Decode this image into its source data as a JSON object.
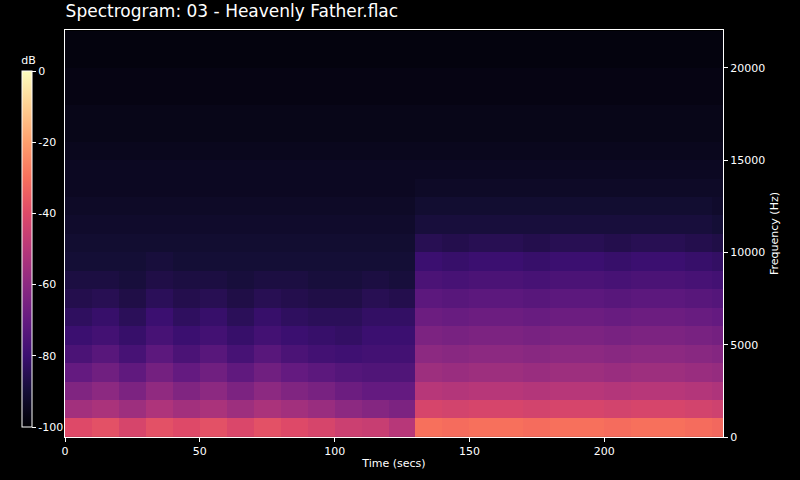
{
  "chart_data": {
    "type": "heatmap",
    "title": "Spectrogram: 03 - Heavenly Father.flac",
    "x_label": "Time (secs)",
    "y_label": "Frequency (Hz)",
    "x": [
      5,
      15,
      25,
      35,
      45,
      55,
      65,
      75,
      85,
      95,
      105,
      115,
      125,
      135,
      145,
      155,
      165,
      175,
      185,
      195,
      205,
      215,
      225,
      235,
      245
    ],
    "y": [
      500,
      1500,
      2500,
      3500,
      4500,
      5500,
      6500,
      7500,
      8500,
      9500,
      10500,
      11500,
      12500,
      13500,
      14500,
      15500,
      16500,
      17500,
      18500,
      19500,
      20500,
      21500
    ],
    "z": [
      [
        -40,
        -38,
        -42,
        -38,
        -40,
        -38,
        -41,
        -38,
        -40,
        -42,
        -45,
        -46,
        -50,
        -30,
        -31,
        -30,
        -30,
        -31,
        -30,
        -30,
        -31,
        -30,
        -30,
        -31,
        -32
      ],
      [
        -55,
        -53,
        -56,
        -52,
        -55,
        -53,
        -56,
        -53,
        -55,
        -57,
        -60,
        -62,
        -64,
        -42,
        -43,
        -42,
        -42,
        -43,
        -42,
        -42,
        -43,
        -42,
        -42,
        -43,
        -44
      ],
      [
        -63,
        -60,
        -64,
        -59,
        -63,
        -60,
        -64,
        -60,
        -63,
        -65,
        -68,
        -70,
        -70,
        -50,
        -51,
        -50,
        -50,
        -51,
        -50,
        -50,
        -51,
        -50,
        -50,
        -51,
        -52
      ],
      [
        -70,
        -67,
        -71,
        -66,
        -70,
        -67,
        -71,
        -67,
        -70,
        -72,
        -74,
        -75,
        -75,
        -56,
        -57,
        -56,
        -56,
        -57,
        -56,
        -56,
        -57,
        -56,
        -56,
        -57,
        -58
      ],
      [
        -76,
        -73,
        -77,
        -72,
        -76,
        -73,
        -77,
        -73,
        -76,
        -78,
        -79,
        -78,
        -78,
        -60,
        -61,
        -60,
        -60,
        -61,
        -60,
        -60,
        -61,
        -60,
        -60,
        -61,
        -62
      ],
      [
        -80,
        -78,
        -81,
        -77,
        -80,
        -78,
        -81,
        -78,
        -80,
        -81,
        -82,
        -80,
        -80,
        -64,
        -65,
        -64,
        -64,
        -65,
        -64,
        -64,
        -65,
        -64,
        -64,
        -65,
        -66
      ],
      [
        -83,
        -81,
        -84,
        -80,
        -83,
        -81,
        -84,
        -81,
        -83,
        -84,
        -84,
        -82,
        -82,
        -68,
        -69,
        -68,
        -68,
        -69,
        -68,
        -68,
        -69,
        -68,
        -68,
        -69,
        -70
      ],
      [
        -86,
        -85,
        -87,
        -84,
        -86,
        -85,
        -87,
        -85,
        -86,
        -87,
        -87,
        -85,
        -86,
        -72,
        -73,
        -72,
        -72,
        -73,
        -72,
        -72,
        -73,
        -72,
        -72,
        -73,
        -74
      ],
      [
        -88,
        -88,
        -89,
        -87,
        -88,
        -88,
        -89,
        -88,
        -88,
        -89,
        -89,
        -88,
        -89,
        -76,
        -77,
        -76,
        -76,
        -77,
        -76,
        -76,
        -77,
        -76,
        -76,
        -77,
        -78
      ],
      [
        -90,
        -90,
        -90,
        -89,
        -90,
        -90,
        -90,
        -90,
        -90,
        -90,
        -90,
        -90,
        -90,
        -80,
        -81,
        -80,
        -80,
        -81,
        -80,
        -80,
        -81,
        -80,
        -80,
        -81,
        -82
      ],
      [
        -91,
        -91,
        -91,
        -91,
        -91,
        -91,
        -91,
        -91,
        -91,
        -91,
        -91,
        -91,
        -91,
        -85,
        -86,
        -85,
        -85,
        -86,
        -85,
        -85,
        -86,
        -85,
        -85,
        -86,
        -87
      ],
      [
        -92,
        -92,
        -92,
        -92,
        -92,
        -92,
        -92,
        -92,
        -92,
        -92,
        -92,
        -92,
        -92,
        -89,
        -89,
        -89,
        -89,
        -89,
        -89,
        -89,
        -89,
        -89,
        -89,
        -89,
        -90
      ],
      [
        -93,
        -93,
        -93,
        -93,
        -93,
        -93,
        -93,
        -93,
        -93,
        -93,
        -93,
        -93,
        -93,
        -91,
        -91,
        -91,
        -91,
        -91,
        -91,
        -91,
        -91,
        -91,
        -91,
        -91,
        -92
      ],
      [
        -94,
        -94,
        -94,
        -94,
        -94,
        -94,
        -94,
        -94,
        -94,
        -94,
        -94,
        -94,
        -94,
        -93,
        -93,
        -93,
        -93,
        -93,
        -93,
        -93,
        -93,
        -93,
        -93,
        -93,
        -93
      ],
      [
        -94,
        -94,
        -94,
        -94,
        -94,
        -94,
        -94,
        -94,
        -94,
        -94,
        -94,
        -94,
        -94,
        -94,
        -94,
        -94,
        -94,
        -94,
        -94,
        -94,
        -94,
        -94,
        -94,
        -94,
        -94
      ],
      [
        -95,
        -95,
        -95,
        -95,
        -95,
        -95,
        -95,
        -95,
        -95,
        -95,
        -95,
        -95,
        -95,
        -95,
        -95,
        -95,
        -95,
        -95,
        -95,
        -95,
        -95,
        -95,
        -95,
        -95,
        -95
      ],
      [
        -96,
        -96,
        -96,
        -96,
        -96,
        -96,
        -96,
        -96,
        -96,
        -96,
        -96,
        -96,
        -96,
        -96,
        -96,
        -96,
        -96,
        -96,
        -96,
        -96,
        -96,
        -96,
        -96,
        -96,
        -96
      ],
      [
        -96,
        -96,
        -96,
        -96,
        -96,
        -96,
        -96,
        -96,
        -96,
        -96,
        -96,
        -96,
        -96,
        -96,
        -96,
        -96,
        -96,
        -96,
        -96,
        -96,
        -96,
        -96,
        -96,
        -96,
        -96
      ],
      [
        -97,
        -97,
        -97,
        -97,
        -97,
        -97,
        -97,
        -97,
        -97,
        -97,
        -97,
        -97,
        -97,
        -97,
        -97,
        -97,
        -97,
        -97,
        -97,
        -97,
        -97,
        -97,
        -97,
        -97,
        -97
      ],
      [
        -97,
        -97,
        -97,
        -97,
        -97,
        -97,
        -97,
        -97,
        -97,
        -97,
        -97,
        -97,
        -97,
        -97,
        -97,
        -97,
        -97,
        -97,
        -97,
        -97,
        -97,
        -97,
        -97,
        -97,
        -97
      ],
      [
        -98,
        -98,
        -98,
        -98,
        -98,
        -98,
        -98,
        -98,
        -98,
        -98,
        -98,
        -98,
        -98,
        -98,
        -98,
        -98,
        -98,
        -98,
        -98,
        -98,
        -98,
        -98,
        -98,
        -98,
        -98
      ],
      [
        -98,
        -98,
        -98,
        -98,
        -98,
        -98,
        -98,
        -98,
        -98,
        -98,
        -98,
        -98,
        -98,
        -98,
        -98,
        -98,
        -98,
        -98,
        -98,
        -98,
        -98,
        -98,
        -98,
        -98,
        -98
      ]
    ],
    "xlim": [
      0,
      244
    ],
    "xticks": [
      0,
      50,
      100,
      150,
      200
    ],
    "ylim": [
      0,
      22050
    ],
    "yticks": [
      0,
      5000,
      10000,
      15000,
      20000
    ],
    "colorbar": {
      "title": "dB",
      "range": [
        -100,
        0
      ],
      "ticks": [
        0,
        -20,
        -40,
        -60,
        -80,
        -100
      ]
    },
    "grid": false
  }
}
